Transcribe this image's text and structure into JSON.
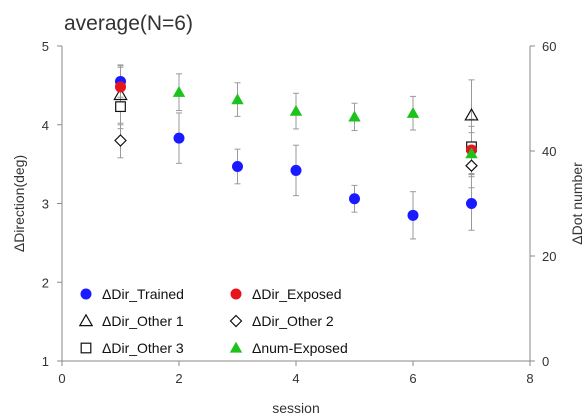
{
  "chart_data": {
    "type": "scatter",
    "title": "average(N=6)",
    "xlabel": "session",
    "ylabel": "ΔDirection(deg)",
    "y2label": "ΔDot number",
    "xlim": [
      0,
      8
    ],
    "ylim": [
      1,
      5
    ],
    "y2lim": [
      0,
      60
    ],
    "x_ticks": [
      "0",
      "2",
      "4",
      "6",
      "8"
    ],
    "y_ticks": [
      "1",
      "2",
      "3",
      "4",
      "5"
    ],
    "y2_ticks": [
      "0",
      "20",
      "40",
      "60"
    ],
    "grid": false,
    "legend_position": "bottom-left",
    "series": [
      {
        "name": "ΔDir_Trained",
        "axis": "left",
        "marker": "circle",
        "color": "#1a1aff",
        "filled": true,
        "x": [
          1,
          2,
          3,
          4,
          5,
          6,
          7
        ],
        "y": [
          4.55,
          3.83,
          3.47,
          3.42,
          3.06,
          2.85,
          3.0
        ],
        "err": [
          0.2,
          0.32,
          0.22,
          0.32,
          0.17,
          0.3,
          0.34
        ]
      },
      {
        "name": "ΔDir_Exposed",
        "axis": "left",
        "marker": "circle",
        "color": "#e8141c",
        "filled": true,
        "x": [
          1,
          7
        ],
        "y": [
          4.48,
          3.68
        ],
        "err": [
          0.25,
          0.3
        ]
      },
      {
        "name": "ΔDir_Other 1",
        "axis": "left",
        "marker": "triangle",
        "color": "#111111",
        "filled": false,
        "x": [
          1,
          7
        ],
        "y": [
          4.38,
          4.12
        ],
        "err": [
          0.38,
          0.45
        ]
      },
      {
        "name": "ΔDir_Other 2",
        "axis": "left",
        "marker": "diamond",
        "color": "#111111",
        "filled": false,
        "x": [
          1,
          7
        ],
        "y": [
          3.8,
          3.48
        ],
        "err": [
          0.22,
          0.28
        ]
      },
      {
        "name": "ΔDir_Other 3",
        "axis": "left",
        "marker": "square",
        "color": "#111111",
        "filled": false,
        "x": [
          1,
          7
        ],
        "y": [
          4.23,
          3.72
        ],
        "err": [
          0.28,
          0.35
        ]
      },
      {
        "name": "Δnum-Exposed",
        "axis": "right",
        "marker": "triangle",
        "color": "#1cc31c",
        "filled": true,
        "x": [
          2,
          3,
          4,
          5,
          6,
          7
        ],
        "y": [
          51.2,
          49.8,
          47.6,
          46.5,
          47.2,
          39.5
        ],
        "err": [
          3.5,
          3.2,
          3.4,
          2.6,
          3.2,
          4.0
        ]
      }
    ]
  }
}
